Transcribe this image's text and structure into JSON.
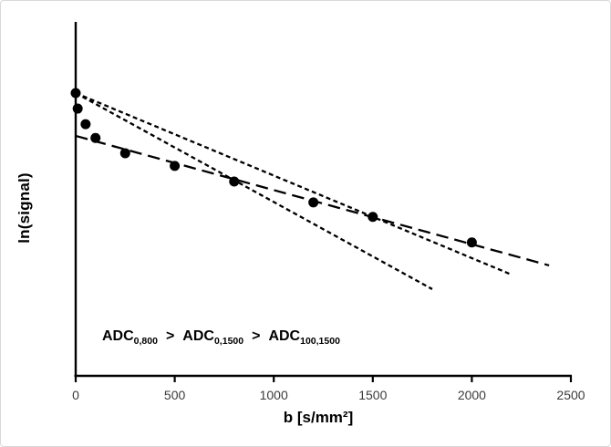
{
  "colors": {
    "axis": "#000000",
    "data": "#000000",
    "tick_label": "#3b3b3b",
    "frame_border": "#d9d9d9",
    "background": "#ffffff"
  },
  "chart_data": {
    "type": "scatter",
    "title": "",
    "xlabel": "b [s/mm²]",
    "ylabel": "ln(signal)",
    "xlim": [
      0,
      2500
    ],
    "x_ticks": [
      0,
      500,
      1000,
      1500,
      2000,
      2500
    ],
    "y_ticks_visible": false,
    "y_scale_note": "relative units 0-1 of plot height; no y tick labels shown",
    "points": [
      {
        "b": 0,
        "y_rel": 0.799
      },
      {
        "b": 10,
        "y_rel": 0.755
      },
      {
        "b": 50,
        "y_rel": 0.711
      },
      {
        "b": 100,
        "y_rel": 0.672
      },
      {
        "b": 250,
        "y_rel": 0.629
      },
      {
        "b": 500,
        "y_rel": 0.593
      },
      {
        "b": 800,
        "y_rel": 0.549
      },
      {
        "b": 1200,
        "y_rel": 0.49
      },
      {
        "b": 1500,
        "y_rel": 0.449
      },
      {
        "b": 2000,
        "y_rel": 0.377
      }
    ],
    "fit_lines": [
      {
        "name": "ADC_0_800",
        "dash": "short-dash",
        "b_start": 0,
        "y_rel_start": 0.799,
        "b_end": 1800,
        "y_rel_end": 0.245
      },
      {
        "name": "ADC_0_1500",
        "dash": "short-dash",
        "b_start": 0,
        "y_rel_start": 0.799,
        "b_end": 2200,
        "y_rel_end": 0.286
      },
      {
        "name": "ADC_100_1500",
        "dash": "long-dash",
        "b_start": 0,
        "y_rel_start": 0.678,
        "b_end": 2390,
        "y_rel_end": 0.312
      }
    ],
    "annotation": {
      "separator": ">",
      "parts": [
        {
          "base": "ADC",
          "sub": "0,800"
        },
        {
          "base": "ADC",
          "sub": "0,1500"
        },
        {
          "base": "ADC",
          "sub": "100,1500"
        }
      ]
    }
  }
}
